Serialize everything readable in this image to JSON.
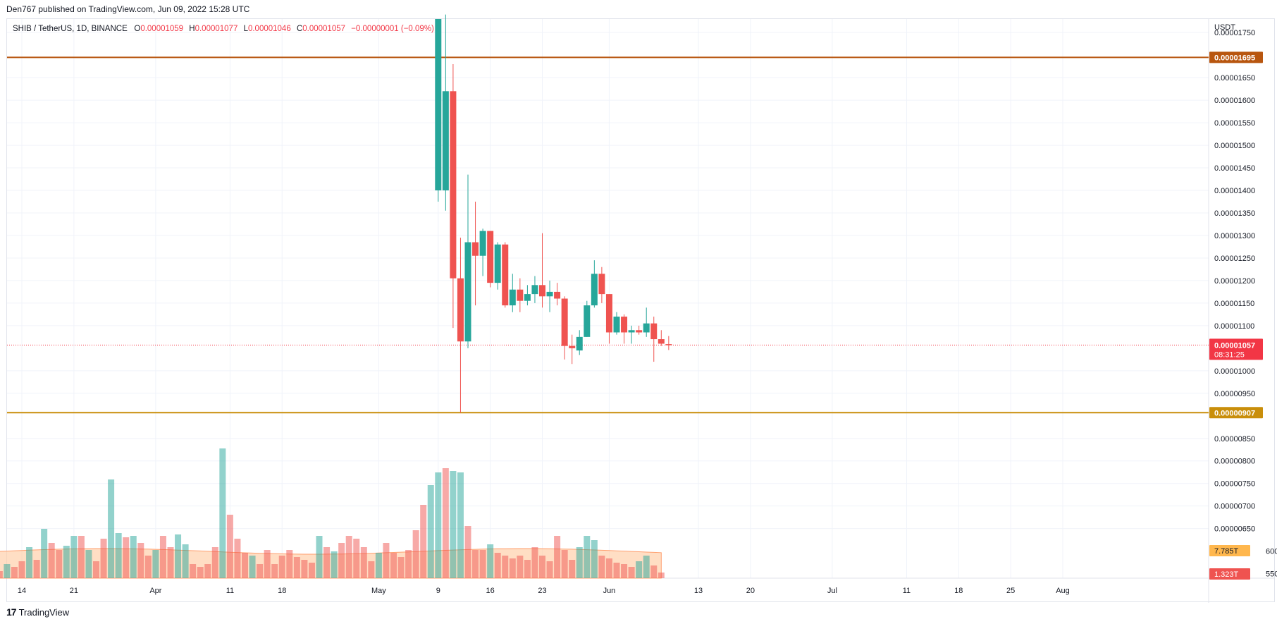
{
  "header": {
    "publish_text": "Den767 published on TradingView.com, Jun 09, 2022 15:28 UTC"
  },
  "legend": {
    "symbol": "SHIB / TetherUS, 1D, BINANCE",
    "open_label": "O",
    "open": "0.00001059",
    "high_label": "H",
    "high": "0.00001077",
    "low_label": "L",
    "low": "0.00001046",
    "close_label": "C",
    "close": "0.00001057",
    "change": "−0.00000001 (−0.09%)"
  },
  "footer": {
    "logo_text": "TradingView"
  },
  "chart_data": {
    "type": "candlestick",
    "currency": "USDT",
    "y_ticks": [
      "0.00001750",
      "0.00001650",
      "0.00001600",
      "0.00001550",
      "0.00001500",
      "0.00001450",
      "0.00001400",
      "0.00001350",
      "0.00001300",
      "0.00001250",
      "0.00001200",
      "0.00001150",
      "0.00001100",
      "0.00001000",
      "0.00000950",
      "0.00000850",
      "0.00000800",
      "0.00000750",
      "0.00000700",
      "0.00000650"
    ],
    "partial_ticks": [
      "600",
      "550"
    ],
    "ylim": [
      5.4e-06,
      1.78e-05
    ],
    "x_ticks": [
      "14",
      "21",
      "Apr",
      "11",
      "18",
      "May",
      "9",
      "16",
      "23",
      "Jun",
      "13",
      "20",
      "Jul",
      "11",
      "18",
      "25",
      "Aug"
    ],
    "x_tick_dates": [
      "2022-03-14",
      "2022-03-21",
      "2022-04-01",
      "2022-04-11",
      "2022-04-18",
      "2022-05-01",
      "2022-05-09",
      "2022-05-16",
      "2022-05-23",
      "2022-06-01",
      "2022-06-13",
      "2022-06-20",
      "2022-07-01",
      "2022-07-11",
      "2022-07-18",
      "2022-07-25",
      "2022-08-01"
    ],
    "horizontal_lines": [
      {
        "value": 1.695e-05,
        "label": "0.00001695",
        "color": "#b8560f"
      },
      {
        "value": 9.07e-06,
        "label": "0.00000907",
        "color": "#c98e0a"
      }
    ],
    "price_line": {
      "value": 1.057e-05,
      "label": "0.00001057",
      "countdown": "08:31:25",
      "color": "#f23645"
    },
    "volume_labels": {
      "ma": "7.785T",
      "vol": "1.323T"
    },
    "candles": [
      {
        "date": "2022-05-09",
        "o": 1.4e-05,
        "h": 1.78e-05,
        "l": 1.375e-05,
        "c": 1.78e-05
      },
      {
        "date": "2022-05-10",
        "o": 1.4e-05,
        "h": 1.79e-05,
        "l": 1.355e-05,
        "c": 1.62e-05
      },
      {
        "date": "2022-05-11",
        "o": 1.62e-05,
        "h": 1.68e-05,
        "l": 1.095e-05,
        "c": 1.205e-05
      },
      {
        "date": "2022-05-12",
        "o": 1.205e-05,
        "h": 1.295e-05,
        "l": 9.07e-06,
        "c": 1.065e-05
      },
      {
        "date": "2022-05-13",
        "o": 1.065e-05,
        "h": 1.435e-05,
        "l": 1.05e-05,
        "c": 1.285e-05
      },
      {
        "date": "2022-05-14",
        "o": 1.285e-05,
        "h": 1.375e-05,
        "l": 1.145e-05,
        "c": 1.255e-05
      },
      {
        "date": "2022-05-15",
        "o": 1.255e-05,
        "h": 1.315e-05,
        "l": 1.21e-05,
        "c": 1.31e-05
      },
      {
        "date": "2022-05-16",
        "o": 1.31e-05,
        "h": 1.31e-05,
        "l": 1.185e-05,
        "c": 1.195e-05
      },
      {
        "date": "2022-05-17",
        "o": 1.195e-05,
        "h": 1.285e-05,
        "l": 1.18e-05,
        "c": 1.28e-05
      },
      {
        "date": "2022-05-18",
        "o": 1.28e-05,
        "h": 1.285e-05,
        "l": 1.14e-05,
        "c": 1.145e-05
      },
      {
        "date": "2022-05-19",
        "o": 1.145e-05,
        "h": 1.215e-05,
        "l": 1.13e-05,
        "c": 1.18e-05
      },
      {
        "date": "2022-05-20",
        "o": 1.18e-05,
        "h": 1.205e-05,
        "l": 1.13e-05,
        "c": 1.155e-05
      },
      {
        "date": "2022-05-21",
        "o": 1.155e-05,
        "h": 1.19e-05,
        "l": 1.145e-05,
        "c": 1.17e-05
      },
      {
        "date": "2022-05-22",
        "o": 1.17e-05,
        "h": 1.21e-05,
        "l": 1.15e-05,
        "c": 1.19e-05
      },
      {
        "date": "2022-05-23",
        "o": 1.19e-05,
        "h": 1.305e-05,
        "l": 1.14e-05,
        "c": 1.165e-05
      },
      {
        "date": "2022-05-24",
        "o": 1.165e-05,
        "h": 1.2e-05,
        "l": 1.13e-05,
        "c": 1.175e-05
      },
      {
        "date": "2022-05-25",
        "o": 1.175e-05,
        "h": 1.195e-05,
        "l": 1.145e-05,
        "c": 1.16e-05
      },
      {
        "date": "2022-05-26",
        "o": 1.16e-05,
        "h": 1.165e-05,
        "l": 1.025e-05,
        "c": 1.055e-05
      },
      {
        "date": "2022-05-27",
        "o": 1.055e-05,
        "h": 1.08e-05,
        "l": 1.015e-05,
        "c": 1.05e-05
      },
      {
        "date": "2022-05-28",
        "o": 1.045e-05,
        "h": 1.09e-05,
        "l": 1.035e-05,
        "c": 1.075e-05
      },
      {
        "date": "2022-05-29",
        "o": 1.075e-05,
        "h": 1.155e-05,
        "l": 1.075e-05,
        "c": 1.145e-05
      },
      {
        "date": "2022-05-30",
        "o": 1.145e-05,
        "h": 1.245e-05,
        "l": 1.14e-05,
        "c": 1.215e-05
      },
      {
        "date": "2022-05-31",
        "o": 1.215e-05,
        "h": 1.23e-05,
        "l": 1.15e-05,
        "c": 1.17e-05
      },
      {
        "date": "2022-06-01",
        "o": 1.17e-05,
        "h": 1.17e-05,
        "l": 1.06e-05,
        "c": 1.085e-05
      },
      {
        "date": "2022-06-02",
        "o": 1.085e-05,
        "h": 1.13e-05,
        "l": 1.08e-05,
        "c": 1.12e-05
      },
      {
        "date": "2022-06-03",
        "o": 1.12e-05,
        "h": 1.125e-05,
        "l": 1.06e-05,
        "c": 1.085e-05
      },
      {
        "date": "2022-06-04",
        "o": 1.085e-05,
        "h": 1.1e-05,
        "l": 1.06e-05,
        "c": 1.09e-05
      },
      {
        "date": "2022-06-05",
        "o": 1.09e-05,
        "h": 1.1e-05,
        "l": 1.08e-05,
        "c": 1.085e-05
      },
      {
        "date": "2022-06-06",
        "o": 1.085e-05,
        "h": 1.14e-05,
        "l": 1.075e-05,
        "c": 1.105e-05
      },
      {
        "date": "2022-06-07",
        "o": 1.105e-05,
        "h": 1.12e-05,
        "l": 1.02e-05,
        "c": 1.07e-05
      },
      {
        "date": "2022-06-08",
        "o": 1.07e-05,
        "h": 1.09e-05,
        "l": 1.055e-05,
        "c": 1.06e-05
      },
      {
        "date": "2022-06-09",
        "o": 1.059e-05,
        "h": 1.077e-05,
        "l": 1.046e-05,
        "c": 1.057e-05
      }
    ],
    "volume_pct": [
      0.05,
      0.1,
      0.08,
      0.12,
      0.22,
      0.13,
      0.35,
      0.25,
      0.2,
      0.23,
      0.3,
      0.3,
      0.2,
      0.12,
      0.28,
      0.7,
      0.32,
      0.29,
      0.3,
      0.25,
      0.16,
      0.2,
      0.3,
      0.22,
      0.31,
      0.24,
      0.1,
      0.08,
      0.1,
      0.22,
      0.92,
      0.45,
      0.28,
      0.18,
      0.16,
      0.1,
      0.2,
      0.1,
      0.16,
      0.2,
      0.15,
      0.13,
      0.11,
      0.3,
      0.22,
      0.19,
      0.25,
      0.3,
      0.28,
      0.22,
      0.12,
      0.18,
      0.25,
      0.18,
      0.15,
      0.2,
      0.34,
      0.52,
      0.66,
      0.75,
      0.78,
      0.76,
      0.75,
      0.37,
      0.2,
      0.2,
      0.24,
      0.18,
      0.16,
      0.14,
      0.16,
      0.13,
      0.22,
      0.16,
      0.12,
      0.3,
      0.2,
      0.13,
      0.22,
      0.3,
      0.27,
      0.16,
      0.14,
      0.11,
      0.1,
      0.08,
      0.12,
      0.16,
      0.09,
      0.04
    ],
    "volume_up": [
      0,
      1,
      0,
      0,
      1,
      0,
      1,
      0,
      0,
      1,
      1,
      0,
      1,
      0,
      0,
      1,
      1,
      0,
      1,
      0,
      0,
      1,
      0,
      0,
      1,
      1,
      0,
      0,
      0,
      0,
      1,
      0,
      0,
      0,
      1,
      0,
      0,
      0,
      0,
      0,
      0,
      0,
      0,
      1,
      0,
      1,
      0,
      0,
      0,
      0,
      0,
      1,
      0,
      0,
      0,
      0,
      0,
      0,
      1,
      1,
      0,
      1,
      1,
      0,
      0,
      0,
      1,
      0,
      0,
      0,
      0,
      0,
      0,
      0,
      0,
      0,
      0,
      0,
      1,
      1,
      1,
      0,
      0,
      0,
      0,
      0,
      1,
      1,
      0,
      0
    ]
  }
}
